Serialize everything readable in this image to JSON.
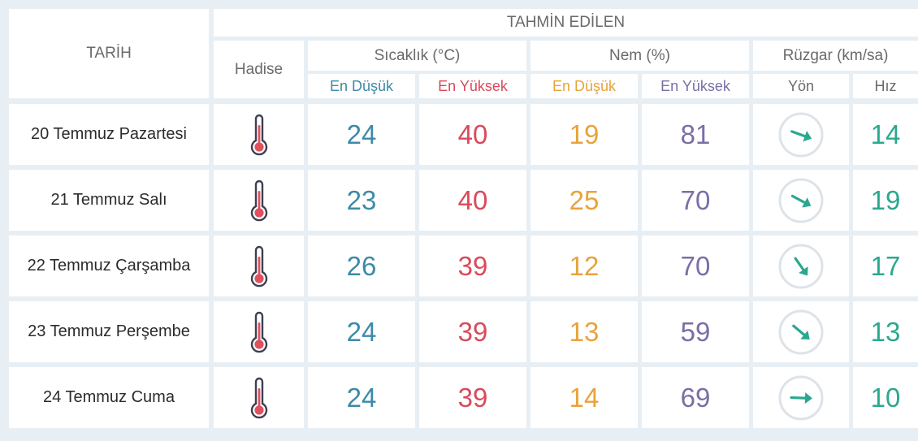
{
  "header": {
    "title": "TAHMİN EDİLEN",
    "date_col": "TARİH",
    "event_col": "Hadise",
    "temp_group": "Sıcaklık (°C)",
    "humidity_group": "Nem (%)",
    "wind_group": "Rüzgar (km/sa)",
    "temp_min": "En Düşük",
    "temp_max": "En Yüksek",
    "hum_min": "En Düşük",
    "hum_max": "En Yüksek",
    "wind_dir": "Yön",
    "wind_speed": "Hız"
  },
  "colors": {
    "temp_min": "#3d8aa6",
    "temp_max": "#d94a5c",
    "hum_min": "#e8a33b",
    "hum_max": "#7b6ea6",
    "wind": "#2aa88f",
    "thermometer_fill": "#e0505f",
    "thermometer_outline": "#3b3f50"
  },
  "rows": [
    {
      "date": "20 Temmuz Pazartesi",
      "event_icon": "thermometer-icon",
      "temp_min": "24",
      "temp_max": "40",
      "hum_min": "19",
      "hum_max": "81",
      "wind_dir_deg": 110,
      "wind_speed": "14"
    },
    {
      "date": "21 Temmuz Salı",
      "event_icon": "thermometer-icon",
      "temp_min": "23",
      "temp_max": "40",
      "hum_min": "25",
      "hum_max": "70",
      "wind_dir_deg": 118,
      "wind_speed": "19"
    },
    {
      "date": "22 Temmuz Çarşamba",
      "event_icon": "thermometer-icon",
      "temp_min": "26",
      "temp_max": "39",
      "hum_min": "12",
      "hum_max": "70",
      "wind_dir_deg": 145,
      "wind_speed": "17"
    },
    {
      "date": "23 Temmuz Perşembe",
      "event_icon": "thermometer-icon",
      "temp_min": "24",
      "temp_max": "39",
      "hum_min": "13",
      "hum_max": "59",
      "wind_dir_deg": 130,
      "wind_speed": "13"
    },
    {
      "date": "24 Temmuz Cuma",
      "event_icon": "thermometer-icon",
      "temp_min": "24",
      "temp_max": "39",
      "hum_min": "14",
      "hum_max": "69",
      "wind_dir_deg": 92,
      "wind_speed": "10"
    }
  ]
}
